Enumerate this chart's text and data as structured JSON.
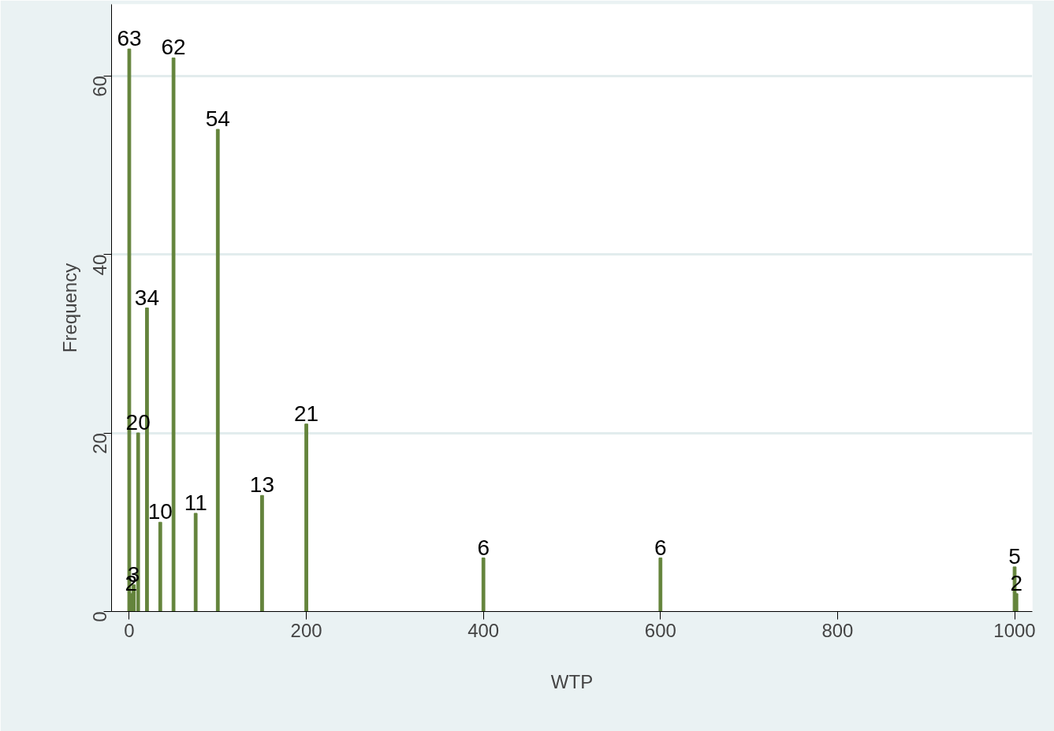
{
  "chart_data": {
    "type": "bar",
    "xlabel": "WTP",
    "ylabel": "Frequency",
    "x": [
      0,
      2,
      5,
      10,
      20,
      35,
      50,
      75,
      100,
      150,
      200,
      400,
      600,
      1000,
      1002
    ],
    "values": [
      63,
      2,
      3,
      20,
      34,
      10,
      62,
      11,
      54,
      13,
      21,
      6,
      6,
      5,
      2
    ],
    "color": "#64843c",
    "xlim": [
      -20,
      1020
    ],
    "xticks": [
      0,
      200,
      400,
      600,
      800,
      1000
    ],
    "ylim": [
      0,
      68
    ],
    "yticks": [
      0,
      20,
      40,
      60
    ],
    "grid": "y",
    "data_labels": true
  }
}
